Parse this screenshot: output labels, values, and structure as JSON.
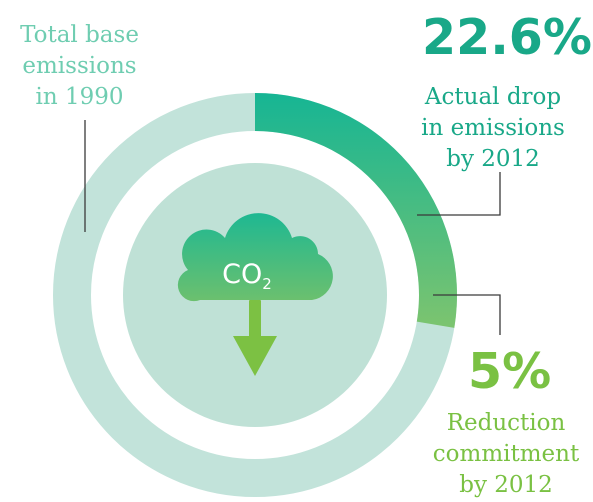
{
  "colors": {
    "ring_base": "#c2e3da",
    "inner_disc": "#bfe1d6",
    "drop_start": "#16b594",
    "drop_end": "#7cc46f",
    "teal_text": "#19a888",
    "green_text": "#7ac143",
    "base_text": "#6fcdb1",
    "cloud_top": "#1eb892",
    "cloud_bottom": "#6cc06e",
    "arrow": "#7cc143"
  },
  "icons": {
    "cloud": "cloud-co2-icon",
    "arrow": "arrow-down-icon"
  },
  "cloud_text": {
    "main": "CO",
    "sub": "2"
  },
  "chart_data": {
    "type": "donut",
    "base": {
      "label": "Total base emissions in 1990",
      "value": 100
    },
    "series": [
      {
        "name": "Actual drop in emissions by 2012",
        "value": 22.6,
        "value_label": "22.6%"
      },
      {
        "name": "Reduction commitment by 2012",
        "value": 5,
        "value_label": "5%"
      }
    ],
    "labels": {
      "base": [
        "Total base",
        "emissions",
        "in 1990"
      ],
      "actual": [
        "Actual drop",
        "in emissions",
        "by 2012"
      ],
      "commitment": [
        "Reduction",
        "commitment",
        "by 2012"
      ]
    }
  }
}
